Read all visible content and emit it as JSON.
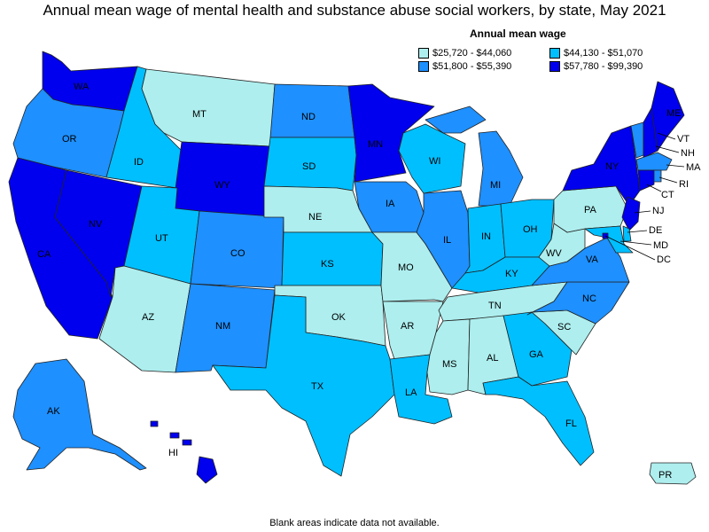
{
  "title": "Annual mean wage of mental health and substance abuse social workers, by state, May 2021",
  "legend": {
    "title": "Annual mean wage",
    "items": [
      {
        "label": "$25,720 - $44,060",
        "color": "#aeeeee",
        "bin": 1
      },
      {
        "label": "$44,130 - $51,070",
        "color": "#00bfff",
        "bin": 2
      },
      {
        "label": "$51,800 - $55,390",
        "color": "#1e90ff",
        "bin": 3
      },
      {
        "label": "$57,780 - $99,390",
        "color": "#0000ee",
        "bin": 4
      }
    ]
  },
  "footnote": "Blank areas indicate data not available.",
  "states": {
    "WA": 4,
    "OR": 3,
    "CA": 4,
    "NV": 4,
    "ID": 2,
    "MT": 1,
    "WY": 4,
    "UT": 2,
    "AZ": 1,
    "CO": 3,
    "NM": 3,
    "ND": 3,
    "SD": 2,
    "NE": 1,
    "KS": 2,
    "OK": 1,
    "TX": 2,
    "MN": 4,
    "IA": 3,
    "MO": 1,
    "AR": 1,
    "LA": 2,
    "WI": 2,
    "IL": 3,
    "MI": 3,
    "IN": 2,
    "OH": 2,
    "KY": 2,
    "TN": 1,
    "MS": 1,
    "AL": 1,
    "GA": 2,
    "FL": 2,
    "SC": 1,
    "NC": 3,
    "VA": 3,
    "WV": 1,
    "PA": 1,
    "NY": 4,
    "VT": 3,
    "NH": 4,
    "ME": 4,
    "MA": 3,
    "RI": 3,
    "CT": 4,
    "NJ": 4,
    "DE": 2,
    "MD": 2,
    "DC": 4,
    "AK": 3,
    "HI": 4,
    "PR": 1
  }
}
